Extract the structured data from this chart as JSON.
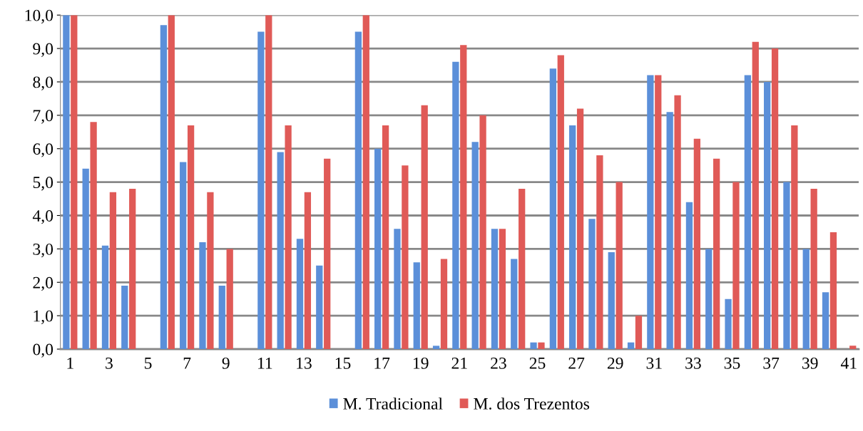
{
  "chart_data": {
    "type": "bar",
    "categories": [
      "1",
      null,
      "3",
      null,
      "5",
      null,
      "7",
      null,
      "9",
      null,
      "11",
      null,
      "13",
      null,
      "15",
      null,
      "17",
      null,
      "19",
      null,
      "21",
      null,
      "23",
      null,
      "25",
      null,
      "27",
      null,
      "29",
      null,
      "31",
      null,
      "33",
      null,
      "35",
      null,
      "37",
      null,
      "39",
      null,
      "41"
    ],
    "series": [
      {
        "name": "M. Tradicional",
        "color": "#5b8fd9",
        "values": [
          10.0,
          5.4,
          3.1,
          1.9,
          0,
          9.7,
          5.6,
          3.2,
          1.9,
          0,
          9.5,
          5.9,
          3.3,
          2.5,
          0,
          9.5,
          6.0,
          3.6,
          2.6,
          0.1,
          8.6,
          6.2,
          3.6,
          2.7,
          0.2,
          8.4,
          6.7,
          3.9,
          2.9,
          0.2,
          8.2,
          7.1,
          4.4,
          3.0,
          1.5,
          8.2,
          8.0,
          5.0,
          3.0,
          1.7,
          0
        ]
      },
      {
        "name": "M. dos Trezentos",
        "color": "#e05a57",
        "values": [
          10.0,
          6.8,
          4.7,
          4.8,
          0,
          10.0,
          6.7,
          4.7,
          3.0,
          0,
          10.0,
          6.7,
          4.7,
          5.7,
          0,
          10.0,
          6.7,
          5.5,
          7.3,
          2.7,
          9.1,
          7.0,
          3.6,
          4.8,
          0.2,
          8.8,
          7.2,
          5.8,
          5.0,
          1.0,
          8.2,
          7.6,
          6.3,
          5.7,
          5.0,
          9.2,
          9.0,
          6.7,
          4.8,
          3.5,
          0.1
        ]
      }
    ],
    "ylim": [
      0,
      10
    ],
    "yticks": [
      {
        "value": 0,
        "label": "0,0"
      },
      {
        "value": 1,
        "label": "1,0"
      },
      {
        "value": 2,
        "label": "2,0"
      },
      {
        "value": 3,
        "label": "3,0"
      },
      {
        "value": 4,
        "label": "4,0"
      },
      {
        "value": 5,
        "label": "5,0"
      },
      {
        "value": 6,
        "label": "6,0"
      },
      {
        "value": 7,
        "label": "7,0"
      },
      {
        "value": 8,
        "label": "8,0"
      },
      {
        "value": 9,
        "label": "9,0"
      },
      {
        "value": 10,
        "label": "10,0"
      }
    ],
    "grid": "y",
    "legend": "bottom"
  }
}
